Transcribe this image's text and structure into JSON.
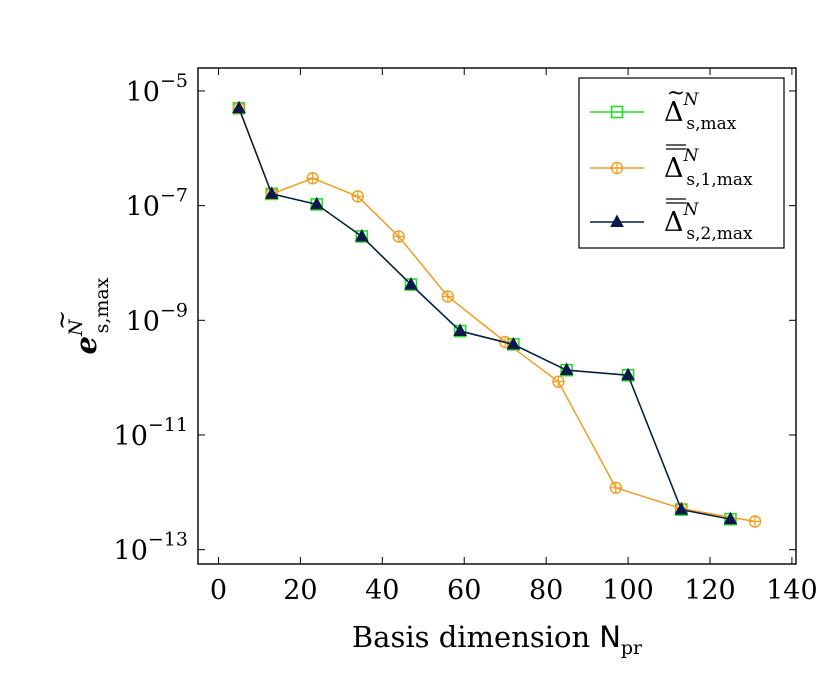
{
  "chart_data": {
    "type": "line",
    "xlabel": "Basis dimension",
    "xlabel_symbol": "N",
    "xlabel_subscript": "pr",
    "ylabel_symbol": "e",
    "ylabel_superscript": "N",
    "ylabel_subscript": "s,max",
    "y_scale": "log",
    "xlim": [
      -5,
      141
    ],
    "ylim_exponent": [
      -13.25,
      -4.6
    ],
    "x_ticks": [
      0,
      20,
      40,
      60,
      80,
      100,
      120,
      140
    ],
    "x_tick_labels": [
      "0",
      "20",
      "40",
      "60",
      "80",
      "100",
      "120",
      "140"
    ],
    "y_ticks_exponent": [
      -5,
      -7,
      -9,
      -11,
      -13
    ],
    "y_tick_labels": [
      {
        "base": "10",
        "exp": "−5"
      },
      {
        "base": "10",
        "exp": "−7"
      },
      {
        "base": "10",
        "exp": "−9"
      },
      {
        "base": "10",
        "exp": "−11"
      },
      {
        "base": "10",
        "exp": "−13"
      }
    ],
    "legend_position": "top-right",
    "series": [
      {
        "name": "Δ",
        "name_superscript": "N",
        "name_subscript": "s,max",
        "accent": "tilde",
        "color": "#22dd22",
        "marker": "square",
        "x": [
          5,
          13,
          24,
          35,
          47,
          59,
          72,
          85,
          100,
          113,
          125
        ],
        "y": [
          5e-06,
          1.6e-07,
          1.05e-07,
          2.9e-08,
          4.2e-09,
          6.5e-10,
          3.8e-10,
          1.35e-10,
          1.1e-10,
          5e-13,
          3.4e-13
        ]
      },
      {
        "name": "Δ",
        "name_superscript": "N",
        "name_subscript": "s,1,max",
        "accent": "double-bar",
        "color": "#f39c1e",
        "marker": "circle-plus",
        "x": [
          5,
          13,
          23,
          34,
          44,
          56,
          70,
          83,
          97,
          113,
          131
        ],
        "y": [
          5e-06,
          1.6e-07,
          3e-07,
          1.45e-07,
          2.9e-08,
          2.6e-09,
          4.2e-10,
          8.5e-11,
          1.2e-12,
          5.2e-13,
          3.1e-13
        ]
      },
      {
        "name": "Δ",
        "name_superscript": "N",
        "name_subscript": "s,2,max",
        "accent": "double-bar",
        "color": "#0b1a4d",
        "marker": "triangle",
        "x": [
          5,
          13,
          24,
          35,
          47,
          59,
          72,
          85,
          100,
          113,
          125
        ],
        "y": [
          5e-06,
          1.6e-07,
          1.05e-07,
          2.9e-08,
          4.2e-09,
          6.5e-10,
          3.8e-10,
          1.35e-10,
          1.1e-10,
          5e-13,
          3.4e-13
        ]
      }
    ]
  }
}
